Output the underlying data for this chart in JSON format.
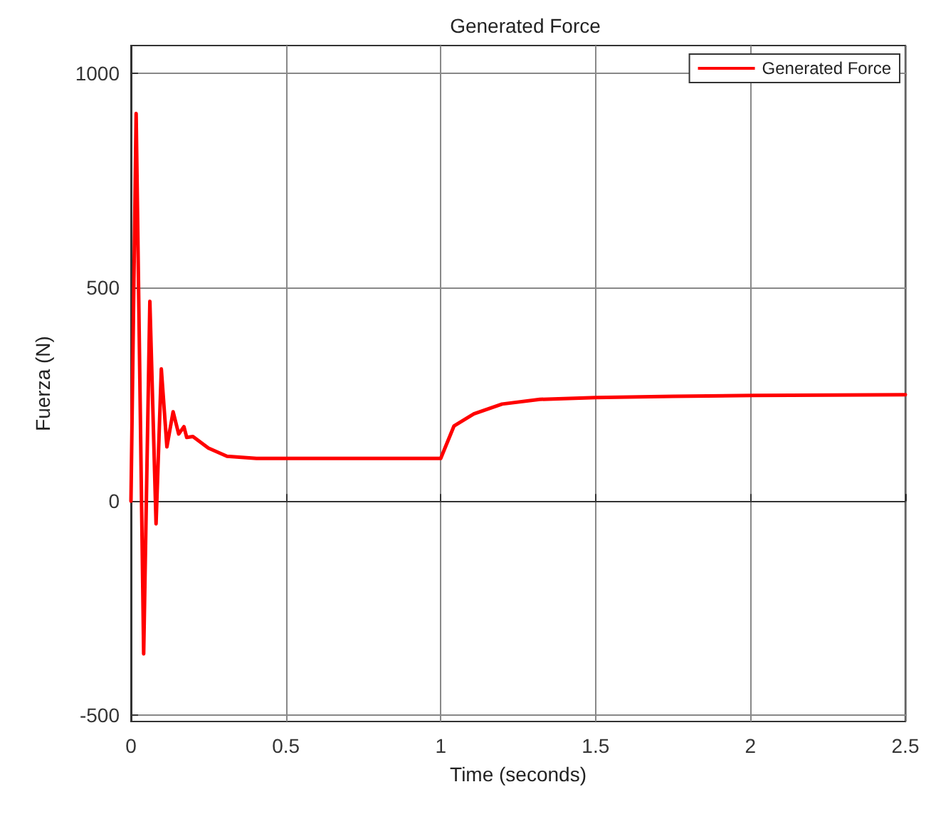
{
  "chart_data": {
    "type": "line",
    "title": "Generated Force",
    "xlabel": "Time (seconds)",
    "ylabel": "Fuerza (N)",
    "x": [
      0,
      0.0167,
      0.041,
      0.061,
      0.081,
      0.098,
      0.116,
      0.136,
      0.154,
      0.171,
      0.18,
      0.2,
      0.25,
      0.31,
      0.405,
      0.6,
      0.8,
      1.0,
      1.043,
      1.107,
      1.198,
      1.32,
      1.5,
      1.75,
      2.01,
      2.25,
      2.5
    ],
    "series": [
      {
        "name": "Generated Force",
        "color": "#ff0000",
        "values": [
          0,
          906,
          -357,
          467,
          -53,
          309,
          127,
          209,
          157,
          174,
          149,
          151,
          124,
          105,
          100,
          100,
          100,
          100,
          176,
          204,
          227,
          238,
          242,
          245,
          247,
          248,
          249
        ]
      }
    ],
    "xlim": [
      0,
      2.5
    ],
    "xticks": [
      0,
      0.5,
      1,
      1.5,
      2,
      2.5
    ],
    "ylim": [
      -515,
      1065
    ],
    "yticks": [
      -500,
      0,
      500,
      1000
    ],
    "grid": true,
    "legend": "top right",
    "marker": "none",
    "line_style": "solid"
  }
}
